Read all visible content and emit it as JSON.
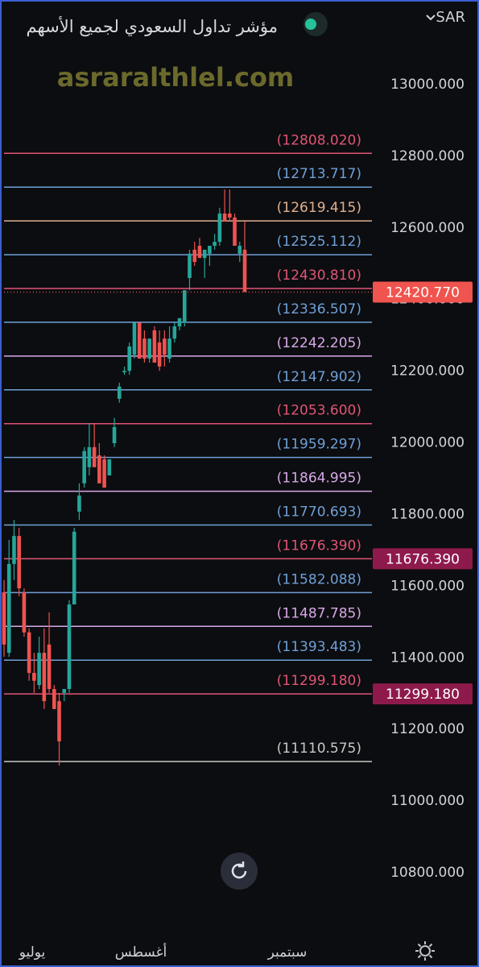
{
  "header": {
    "currency": "SAR",
    "title": "مؤشر تداول السعودي لجميع الأسهم"
  },
  "watermark": "asraralthlel.com",
  "chart_data": {
    "type": "candlestick",
    "categories": [
      null,
      null,
      null,
      null,
      null,
      null,
      null,
      null,
      null,
      null,
      null,
      null,
      null,
      null,
      null,
      null,
      null,
      null,
      null,
      null,
      null,
      null,
      null,
      null,
      null,
      null,
      null,
      null,
      null,
      null,
      null,
      null,
      null,
      null,
      null,
      null,
      null,
      null,
      null,
      null,
      null,
      null,
      null,
      null,
      null,
      null,
      null,
      null,
      null
    ],
    "open": [
      11583,
      11414,
      11662,
      11740,
      11583,
      11471,
      11358,
      11324,
      11414,
      11437,
      11313,
      11279,
      11302,
      11313,
      11549,
      11808,
      11887,
      11932,
      11988,
      11965,
      11954,
      11909,
      11999,
      12123,
      12197,
      12201,
      12246,
      12336,
      12291,
      12235,
      12314,
      12280,
      12291,
      12235,
      12291,
      12325,
      12336,
      12460,
      12539,
      12550,
      12516,
      12528,
      12550,
      12561,
      12640,
      12640,
      12629,
      12528,
      12539
    ],
    "high": [
      11617,
      11729,
      11785,
      11763,
      11594,
      11482,
      11414,
      11459,
      11482,
      11527,
      11324,
      11302,
      11313,
      11561,
      11763,
      11887,
      11988,
      12055,
      12055,
      11999,
      11965,
      11954,
      12070,
      12168,
      12213,
      12280,
      12336,
      12336,
      12314,
      12291,
      12325,
      12314,
      12314,
      12325,
      12336,
      12348,
      12426,
      12539,
      12561,
      12572,
      12539,
      12550,
      12583,
      12656,
      12707,
      12707,
      12640,
      12561,
      12618
    ],
    "low": [
      11403,
      11403,
      11617,
      11572,
      11459,
      11336,
      11302,
      11313,
      11257,
      11302,
      11257,
      11099,
      11279,
      11302,
      11549,
      11785,
      11875,
      11909,
      11932,
      11887,
      11875,
      11909,
      11988,
      12112,
      12190,
      12190,
      12235,
      12235,
      12224,
      12224,
      12224,
      12201,
      12213,
      12224,
      12280,
      12314,
      12325,
      12426,
      12494,
      12516,
      12460,
      12494,
      12539,
      12550,
      12618,
      12618,
      12550,
      12505,
      12426
    ],
    "close": [
      11437,
      11662,
      11740,
      11594,
      11471,
      11358,
      11336,
      11414,
      11279,
      11313,
      11257,
      11167,
      11313,
      11549,
      11752,
      11853,
      11977,
      11988,
      11932,
      11887,
      11875,
      11954,
      12044,
      12157,
      12201,
      12269,
      12336,
      12235,
      12235,
      12291,
      12224,
      12213,
      12246,
      12291,
      12325,
      12348,
      12426,
      12528,
      12505,
      12516,
      12539,
      12550,
      12561,
      12640,
      12618,
      12629,
      12550,
      12550,
      12420.77
    ],
    "up_color": "#26a69a",
    "down_color": "#ef5350",
    "ylim": [
      10672,
      13236
    ],
    "yticks": [
      {
        "value": 10800,
        "label": "10800.000"
      },
      {
        "value": 11000,
        "label": "11000.000"
      },
      {
        "value": 11200,
        "label": "11200.000"
      },
      {
        "value": 11400,
        "label": "11400.000"
      },
      {
        "value": 11600,
        "label": "11600.000"
      },
      {
        "value": 11800,
        "label": "11800.000"
      },
      {
        "value": 12000,
        "label": "12000.000"
      },
      {
        "value": 12200,
        "label": "12200.000"
      },
      {
        "value": 12400,
        "label": "12400.000"
      },
      {
        "value": 12600,
        "label": "12600.000"
      },
      {
        "value": 12800,
        "label": "12800.000"
      },
      {
        "value": 13000,
        "label": "13000.000"
      }
    ],
    "levels": [
      {
        "value": 12808.02,
        "label": "(12808.020)",
        "color": "#e05575"
      },
      {
        "value": 12713.717,
        "label": "(12713.717)",
        "color": "#6fa0d8"
      },
      {
        "value": 12619.415,
        "label": "(12619.415)",
        "color": "#e0b090"
      },
      {
        "value": 12525.112,
        "label": "(12525.112)",
        "color": "#6fa0d8"
      },
      {
        "value": 12430.81,
        "label": "(12430.810)",
        "color": "#e05575"
      },
      {
        "value": 12336.507,
        "label": "(12336.507)",
        "color": "#6fa0d8"
      },
      {
        "value": 12242.205,
        "label": "(12242.205)",
        "color": "#d8a8e8"
      },
      {
        "value": 12147.902,
        "label": "(12147.902)",
        "color": "#6fa0d8"
      },
      {
        "value": 12053.6,
        "label": "(12053.600)",
        "color": "#e05575"
      },
      {
        "value": 11959.297,
        "label": "(11959.297)",
        "color": "#6fa0d8"
      },
      {
        "value": 11864.995,
        "label": "(11864.995)",
        "color": "#d8a8e8"
      },
      {
        "value": 11770.693,
        "label": "(11770.693)",
        "color": "#6fa0d8"
      },
      {
        "value": 11676.39,
        "label": "(11676.390)",
        "color": "#e05575"
      },
      {
        "value": 11582.088,
        "label": "(11582.088)",
        "color": "#6fa0d8"
      },
      {
        "value": 11487.785,
        "label": "(11487.785)",
        "color": "#d8a8e8"
      },
      {
        "value": 11393.483,
        "label": "(11393.483)",
        "color": "#6fa0d8"
      },
      {
        "value": 11299.18,
        "label": "(11299.180)",
        "color": "#e05575"
      },
      {
        "value": 11110.575,
        "label": "(11110.575)",
        "color": "#c8c8c8"
      }
    ],
    "price_tags": [
      {
        "value": 12420.77,
        "label": "12420.770",
        "color": "#f0544f"
      },
      {
        "value": 11676.39,
        "label": "11676.390",
        "color": "#8e1a4c"
      },
      {
        "value": 11299.18,
        "label": "11299.180",
        "color": "#8e1a4c"
      }
    ],
    "x_axis_labels": [
      "يوليو",
      "أغسطس",
      "سبتمبر"
    ]
  }
}
